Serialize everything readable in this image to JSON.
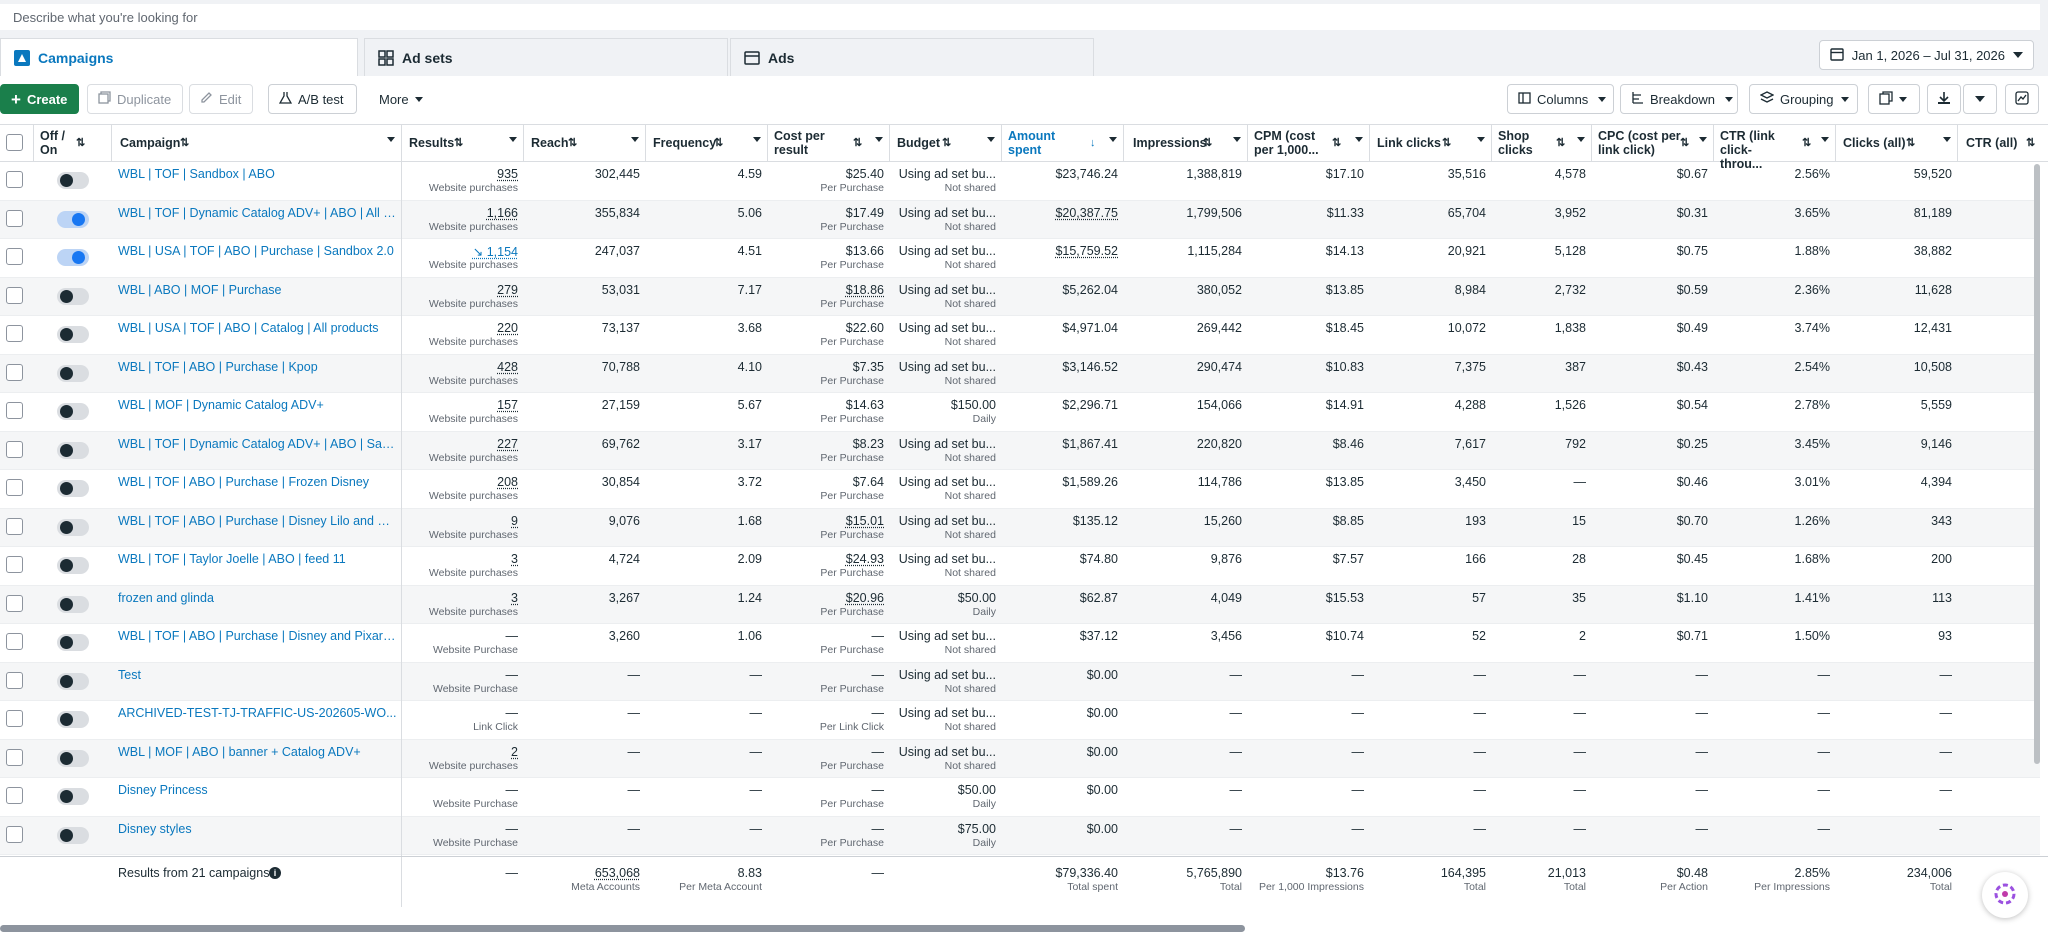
{
  "search": {
    "placeholder": "Describe what you're looking for"
  },
  "tabs": [
    {
      "label": "Campaigns",
      "icon": "flag-icon"
    },
    {
      "label": "Ad sets",
      "icon": "grid-icon"
    },
    {
      "label": "Ads",
      "icon": "ad-icon"
    }
  ],
  "date_range": "Jan 1, 2026 – Jul 31, 2026",
  "toolbar": {
    "create": "Create",
    "duplicate": "Duplicate",
    "edit": "Edit",
    "ab_test": "A/B test",
    "more": "More",
    "columns": "Columns",
    "breakdown": "Breakdown",
    "grouping": "Grouping"
  },
  "headers": {
    "offon": "Off / On",
    "campaign": "Campaign",
    "results": "Results",
    "reach": "Reach",
    "frequency": "Frequency",
    "cpr": "Cost per result",
    "budget": "Budget",
    "amount": "Amount spent",
    "impressions": "Impressions",
    "cpm": "CPM (cost per 1,000...",
    "link_clicks": "Link clicks",
    "shop_clicks": "Shop clicks",
    "cpc": "CPC (cost per link click)",
    "ctr_link": "CTR (link click-throu...",
    "clicks_all": "Clicks (all)",
    "ctr_all": "CTR (all)"
  },
  "rows": [
    {
      "on": false,
      "name": "WBL | TOF | Sandbox | ABO",
      "results": "935",
      "results_sub": "Website purchases",
      "reach": "302,445",
      "freq": "4.59",
      "cpr": "$25.40",
      "cpr_sub": "Per Purchase",
      "budget": "Using ad set bu...",
      "budget_sub": "Not shared",
      "amount": "$23,746.24",
      "impr": "1,388,819",
      "cpm": "$17.10",
      "link": "35,516",
      "shop": "4,578",
      "cpc": "$0.67",
      "ctrl": "2.56%",
      "clicks": "59,520"
    },
    {
      "on": true,
      "name": "WBL | TOF | Dynamic Catalog ADV+ | ABO | All pr...",
      "results": "1,166",
      "results_sub": "Website purchases",
      "reach": "355,834",
      "freq": "5.06",
      "cpr": "$17.49",
      "cpr_sub": "Per Purchase",
      "budget": "Using ad set bu...",
      "budget_sub": "Not shared",
      "amount": "$20,387.75",
      "impr": "1,799,506",
      "cpm": "$11.33",
      "link": "65,704",
      "shop": "3,952",
      "cpc": "$0.31",
      "ctrl": "3.65%",
      "clicks": "81,189"
    },
    {
      "on": true,
      "name": "WBL | USA | TOF | ABO | Purchase | Sandbox 2.0",
      "results": "↘ 1,154",
      "results_sub": "Website purchases",
      "reach": "247,037",
      "freq": "4.51",
      "cpr": "$13.66",
      "cpr_sub": "Per Purchase",
      "budget": "Using ad set bu...",
      "budget_sub": "Not shared",
      "amount": "$15,759.52",
      "impr": "1,115,284",
      "cpm": "$14.13",
      "link": "20,921",
      "shop": "5,128",
      "cpc": "$0.75",
      "ctrl": "1.88%",
      "clicks": "38,882"
    },
    {
      "on": false,
      "name": "WBL | ABO | MOF | Purchase",
      "results": "279",
      "results_sub": "Website purchases",
      "reach": "53,031",
      "freq": "7.17",
      "cpr": "$18.86",
      "cpr_sub": "Per Purchase",
      "budget": "Using ad set bu...",
      "budget_sub": "Not shared",
      "amount": "$5,262.04",
      "impr": "380,052",
      "cpm": "$13.85",
      "link": "8,984",
      "shop": "2,732",
      "cpc": "$0.59",
      "ctrl": "2.36%",
      "clicks": "11,628"
    },
    {
      "on": false,
      "name": "WBL | USA | TOF | ABO | Catalog | All products",
      "results": "220",
      "results_sub": "Website purchases",
      "reach": "73,137",
      "freq": "3.68",
      "cpr": "$22.60",
      "cpr_sub": "Per Purchase",
      "budget": "Using ad set bu...",
      "budget_sub": "Not shared",
      "amount": "$4,971.04",
      "impr": "269,442",
      "cpm": "$18.45",
      "link": "10,072",
      "shop": "1,838",
      "cpc": "$0.49",
      "ctrl": "3.74%",
      "clicks": "12,431"
    },
    {
      "on": false,
      "name": "WBL | TOF | ABO | Purchase | Kpop",
      "results": "428",
      "results_sub": "Website purchases",
      "reach": "70,788",
      "freq": "4.10",
      "cpr": "$7.35",
      "cpr_sub": "Per Purchase",
      "budget": "Using ad set bu...",
      "budget_sub": "Not shared",
      "amount": "$3,146.52",
      "impr": "290,474",
      "cpm": "$10.83",
      "link": "7,375",
      "shop": "387",
      "cpc": "$0.43",
      "ctrl": "2.54%",
      "clicks": "10,508"
    },
    {
      "on": false,
      "name": "WBL | MOF | Dynamic Catalog ADV+",
      "results": "157",
      "results_sub": "Website purchases",
      "reach": "27,159",
      "freq": "5.67",
      "cpr": "$14.63",
      "cpr_sub": "Per Purchase",
      "budget": "$150.00",
      "budget_sub": "Daily",
      "amount": "$2,296.71",
      "impr": "154,066",
      "cpm": "$14.91",
      "link": "4,288",
      "shop": "1,526",
      "cpc": "$0.54",
      "ctrl": "2.78%",
      "clicks": "5,559"
    },
    {
      "on": false,
      "name": "WBL | TOF | Dynamic Catalog ADV+ | ABO | Sand...",
      "results": "227",
      "results_sub": "Website purchases",
      "reach": "69,762",
      "freq": "3.17",
      "cpr": "$8.23",
      "cpr_sub": "Per Purchase",
      "budget": "Using ad set bu...",
      "budget_sub": "Not shared",
      "amount": "$1,867.41",
      "impr": "220,820",
      "cpm": "$8.46",
      "link": "7,617",
      "shop": "792",
      "cpc": "$0.25",
      "ctrl": "3.45%",
      "clicks": "9,146"
    },
    {
      "on": false,
      "name": "WBL | TOF | ABO | Purchase | Frozen Disney",
      "results": "208",
      "results_sub": "Website purchases",
      "reach": "30,854",
      "freq": "3.72",
      "cpr": "$7.64",
      "cpr_sub": "Per Purchase",
      "budget": "Using ad set bu...",
      "budget_sub": "Not shared",
      "amount": "$1,589.26",
      "impr": "114,786",
      "cpm": "$13.85",
      "link": "3,450",
      "shop": "—",
      "cpc": "$0.46",
      "ctrl": "3.01%",
      "clicks": "4,394"
    },
    {
      "on": false,
      "name": "WBL | TOF | ABO | Purchase | Disney Lilo and Stich",
      "results": "9",
      "results_sub": "Website purchases",
      "reach": "9,076",
      "freq": "1.68",
      "cpr": "$15.01",
      "cpr_sub": "Per Purchase",
      "budget": "Using ad set bu...",
      "budget_sub": "Not shared",
      "amount": "$135.12",
      "impr": "15,260",
      "cpm": "$8.85",
      "link": "193",
      "shop": "15",
      "cpc": "$0.70",
      "ctrl": "1.26%",
      "clicks": "343"
    },
    {
      "on": false,
      "name": "WBL | TOF | Taylor Joelle | ABO | feed 11",
      "results": "3",
      "results_sub": "Website purchases",
      "reach": "4,724",
      "freq": "2.09",
      "cpr": "$24.93",
      "cpr_sub": "Per Purchase",
      "budget": "Using ad set bu...",
      "budget_sub": "Not shared",
      "amount": "$74.80",
      "impr": "9,876",
      "cpm": "$7.57",
      "link": "166",
      "shop": "28",
      "cpc": "$0.45",
      "ctrl": "1.68%",
      "clicks": "200"
    },
    {
      "on": false,
      "name": "frozen and glinda",
      "results": "3",
      "results_sub": "Website purchases",
      "reach": "3,267",
      "freq": "1.24",
      "cpr": "$20.96",
      "cpr_sub": "Per Purchase",
      "budget": "$50.00",
      "budget_sub": "Daily",
      "amount": "$62.87",
      "impr": "4,049",
      "cpm": "$15.53",
      "link": "57",
      "shop": "35",
      "cpc": "$1.10",
      "ctrl": "1.41%",
      "clicks": "113"
    },
    {
      "on": false,
      "name": "WBL | TOF | ABO | Purchase | Disney and Pixar To...",
      "results": "—",
      "results_sub": "Website Purchase",
      "reach": "3,260",
      "freq": "1.06",
      "cpr": "—",
      "cpr_sub": "Per Purchase",
      "budget": "Using ad set bu...",
      "budget_sub": "Not shared",
      "amount": "$37.12",
      "impr": "3,456",
      "cpm": "$10.74",
      "link": "52",
      "shop": "2",
      "cpc": "$0.71",
      "ctrl": "1.50%",
      "clicks": "93"
    },
    {
      "on": false,
      "name": "Test",
      "results": "—",
      "results_sub": "Website Purchase",
      "reach": "—",
      "freq": "—",
      "cpr": "—",
      "cpr_sub": "Per Purchase",
      "budget": "Using ad set bu...",
      "budget_sub": "Not shared",
      "amount": "$0.00",
      "impr": "—",
      "cpm": "—",
      "link": "—",
      "shop": "—",
      "cpc": "—",
      "ctrl": "—",
      "clicks": "—"
    },
    {
      "on": false,
      "name": "ARCHIVED-TEST-TJ-TRAFFIC-US-202605-WO...",
      "results": "—",
      "results_sub": "Link Click",
      "reach": "—",
      "freq": "—",
      "cpr": "—",
      "cpr_sub": "Per Link Click",
      "budget": "Using ad set bu...",
      "budget_sub": "Not shared",
      "amount": "$0.00",
      "impr": "—",
      "cpm": "—",
      "link": "—",
      "shop": "—",
      "cpc": "—",
      "ctrl": "—",
      "clicks": "—"
    },
    {
      "on": false,
      "name": "WBL | MOF | ABO | banner + Catalog ADV+",
      "results": "2",
      "results_sub": "Website purchases",
      "reach": "—",
      "freq": "—",
      "cpr": "—",
      "cpr_sub": "Per Purchase",
      "budget": "Using ad set bu...",
      "budget_sub": "Not shared",
      "amount": "$0.00",
      "impr": "—",
      "cpm": "—",
      "link": "—",
      "shop": "—",
      "cpc": "—",
      "ctrl": "—",
      "clicks": "—"
    },
    {
      "on": false,
      "name": "Disney Princess",
      "results": "—",
      "results_sub": "Website Purchase",
      "reach": "—",
      "freq": "—",
      "cpr": "—",
      "cpr_sub": "Per Purchase",
      "budget": "$50.00",
      "budget_sub": "Daily",
      "amount": "$0.00",
      "impr": "—",
      "cpm": "—",
      "link": "—",
      "shop": "—",
      "cpc": "—",
      "ctrl": "—",
      "clicks": "—"
    },
    {
      "on": false,
      "name": "Disney styles",
      "results": "—",
      "results_sub": "Website Purchase",
      "reach": "—",
      "freq": "—",
      "cpr": "—",
      "cpr_sub": "Per Purchase",
      "budget": "$75.00",
      "budget_sub": "Daily",
      "amount": "$0.00",
      "impr": "—",
      "cpm": "—",
      "link": "—",
      "shop": "—",
      "cpc": "—",
      "ctrl": "—",
      "clicks": "—"
    }
  ],
  "footer": {
    "label": "Results from 21 campaigns",
    "results": "—",
    "reach": "653,068",
    "reach_sub": "Meta Accounts",
    "freq": "8.83",
    "freq_sub": "Per Meta Account",
    "cpr": "—",
    "amount": "$79,336.40",
    "amount_sub": "Total spent",
    "impr": "5,765,890",
    "impr_sub": "Total",
    "cpm": "$13.76",
    "cpm_sub": "Per 1,000 Impressions",
    "link": "164,395",
    "link_sub": "Total",
    "shop": "21,013",
    "shop_sub": "Total",
    "cpc": "$0.48",
    "cpc_sub": "Per Action",
    "ctrl": "2.85%",
    "ctrl_sub": "Per Impressions",
    "clicks": "234,006",
    "clicks_sub": "Total"
  },
  "colors": {
    "accent": "#0a78be",
    "create_green": "#1a7f4b",
    "toggle_on": "#1877f2"
  }
}
